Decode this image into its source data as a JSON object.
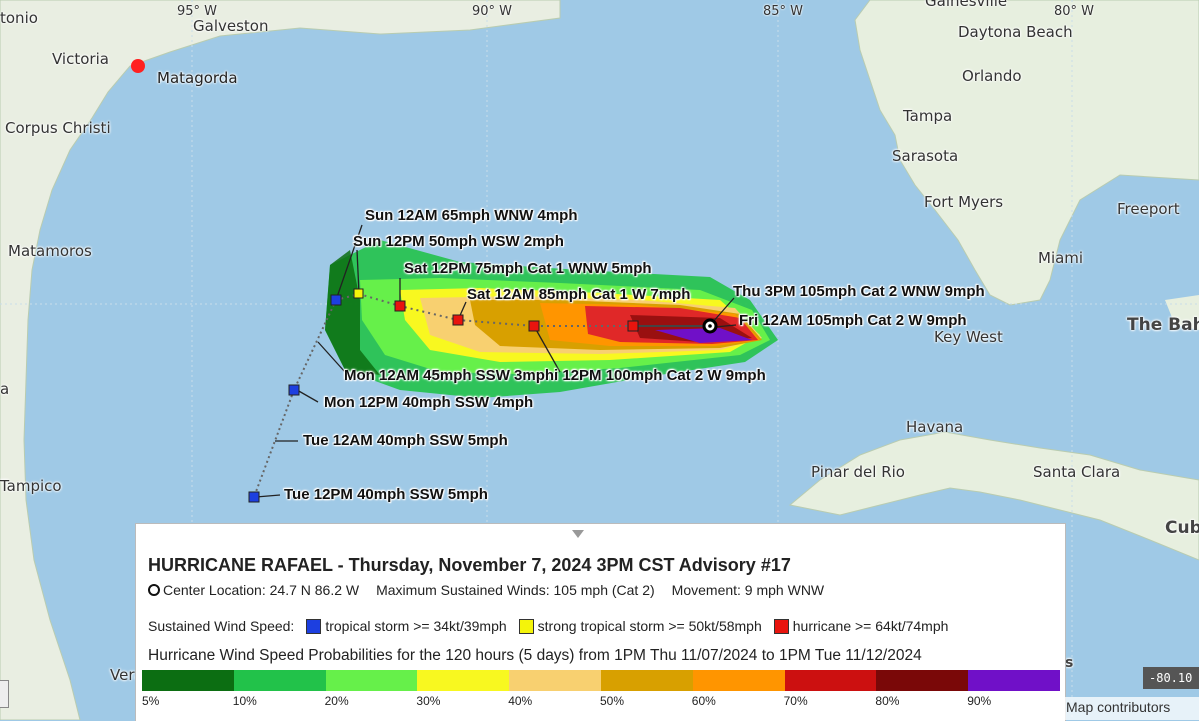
{
  "map": {
    "longitude_labels": [
      "95° W",
      "90° W",
      "85° W",
      "80° W"
    ],
    "places": {
      "tonio": "tonio",
      "galveston": "Galveston",
      "victoria": "Victoria",
      "matagorda": "Matagorda",
      "corpus_christi": "Corpus Christi",
      "matamoros": "Matamoros",
      "tampico": "Tampico",
      "veracruz": "Veracru",
      "a": "a",
      "gainesville": "Gainesville",
      "daytona": "Daytona Beach",
      "orlando": "Orlando",
      "tampa": "Tampa",
      "sarasota": "Sarasota",
      "fortmyers": "Fort Myers",
      "freeport": "Freeport",
      "miami": "Miami",
      "keywest": "Key West",
      "bahamas": "The Bah",
      "havana": "Havana",
      "pinar": "Pinar del Rio",
      "santaclara": "Santa Clara",
      "cuba": "Cub",
      "s": "s"
    },
    "track_labels": {
      "sun12am": "Sun 12AM 65mph WNW 4mph",
      "sun12pm": "Sun 12PM 50mph WSW 2mph",
      "sat12pm": "Sat 12PM 75mph Cat 1 WNW 5mph",
      "sat12am": "Sat 12AM 85mph Cat 1 W 7mph",
      "thu3pm": "Thu 3PM 105mph Cat 2 WNW 9mph",
      "fri12am": "Fri 12AM 105mph Cat 2 W 9mph",
      "mon12am": "Mon 12AM 45mph SSW 3mphi 12PM 100mph Cat 2 W 9mph",
      "mon12pm": "Mon 12PM 40mph SSW 4mph",
      "tue12am": "Tue 12AM 40mph SSW 5mph",
      "tue12pm": "Tue 12PM 40mph SSW 5mph"
    }
  },
  "panel": {
    "title": "HURRICANE RAFAEL  -   Thursday, November 7, 2024 3PM CST  Advisory #17",
    "center": "Center Location: 24.7 N 86.2 W",
    "winds": "Maximum Sustained Winds: 105 mph (Cat 2)",
    "movement": "Movement: 9 mph WNW",
    "legend_label": "Sustained Wind Speed:",
    "legend": [
      {
        "label": "tropical storm >= 34kt/39mph",
        "color": "#1d3fe0"
      },
      {
        "label": "strong tropical storm >= 50kt/58mph",
        "color": "#f4f40a"
      },
      {
        "label": "hurricane >= 64kt/74mph",
        "color": "#e8140e"
      }
    ],
    "prob_title": "Hurricane Wind Speed Probabilities for the 120 hours (5 days) from 1PM Thu 11/07/2024 to 1PM Tue 11/12/2024",
    "scale_colors": [
      "#0c6e12",
      "#22c24a",
      "#66f04a",
      "#f8f820",
      "#f8d070",
      "#d8a000",
      "#ff9500",
      "#cc1010",
      "#7a0808",
      "#7010c8"
    ],
    "ticks": [
      "5%",
      "10%",
      "20%",
      "30%",
      "40%",
      "50%",
      "60%",
      "70%",
      "80%",
      "90%"
    ]
  },
  "coords": "-80.10",
  "attribution": "Map contributors"
}
